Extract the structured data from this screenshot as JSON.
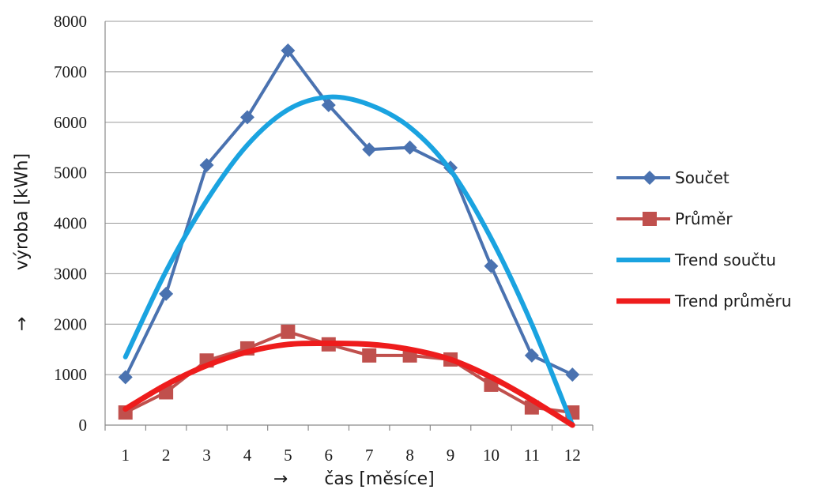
{
  "chart_data": {
    "type": "line",
    "title": "",
    "xlabel": "čas [měsíce]",
    "xlabel_arrow": "→",
    "ylabel": "výroba [kWh]",
    "ylabel_arrow": "→",
    "categories": [
      "1",
      "2",
      "3",
      "4",
      "5",
      "6",
      "7",
      "8",
      "9",
      "10",
      "11",
      "12"
    ],
    "x": [
      1,
      2,
      3,
      4,
      5,
      6,
      7,
      8,
      9,
      10,
      11,
      12
    ],
    "ylim": [
      0,
      8000
    ],
    "yticks": [
      "0",
      "1000",
      "2000",
      "3000",
      "4000",
      "5000",
      "6000",
      "7000",
      "8000"
    ],
    "grid": "horizontal",
    "legend_position": "right",
    "series": [
      {
        "name": "Součet",
        "color": "#4a72b0",
        "marker": "diamond",
        "values": [
          950,
          2600,
          5150,
          6100,
          7420,
          6340,
          5460,
          5500,
          5100,
          3150,
          1380,
          1000
        ]
      },
      {
        "name": "Průměr",
        "color": "#c0504d",
        "marker": "square",
        "values": [
          250,
          650,
          1280,
          1520,
          1850,
          1600,
          1380,
          1380,
          1300,
          800,
          350,
          250
        ]
      },
      {
        "name": "Trend součtu",
        "color": "#1aa3e0",
        "marker": "none",
        "smooth": true,
        "values": [
          1350,
          3050,
          4450,
          5550,
          6250,
          6500,
          6350,
          5900,
          5050,
          3700,
          2000,
          0
        ]
      },
      {
        "name": "Trend průměru",
        "color": "#ee1c1c",
        "marker": "none",
        "smooth": true,
        "values": [
          320,
          800,
          1180,
          1450,
          1600,
          1620,
          1600,
          1500,
          1300,
          950,
          500,
          0
        ]
      }
    ]
  }
}
